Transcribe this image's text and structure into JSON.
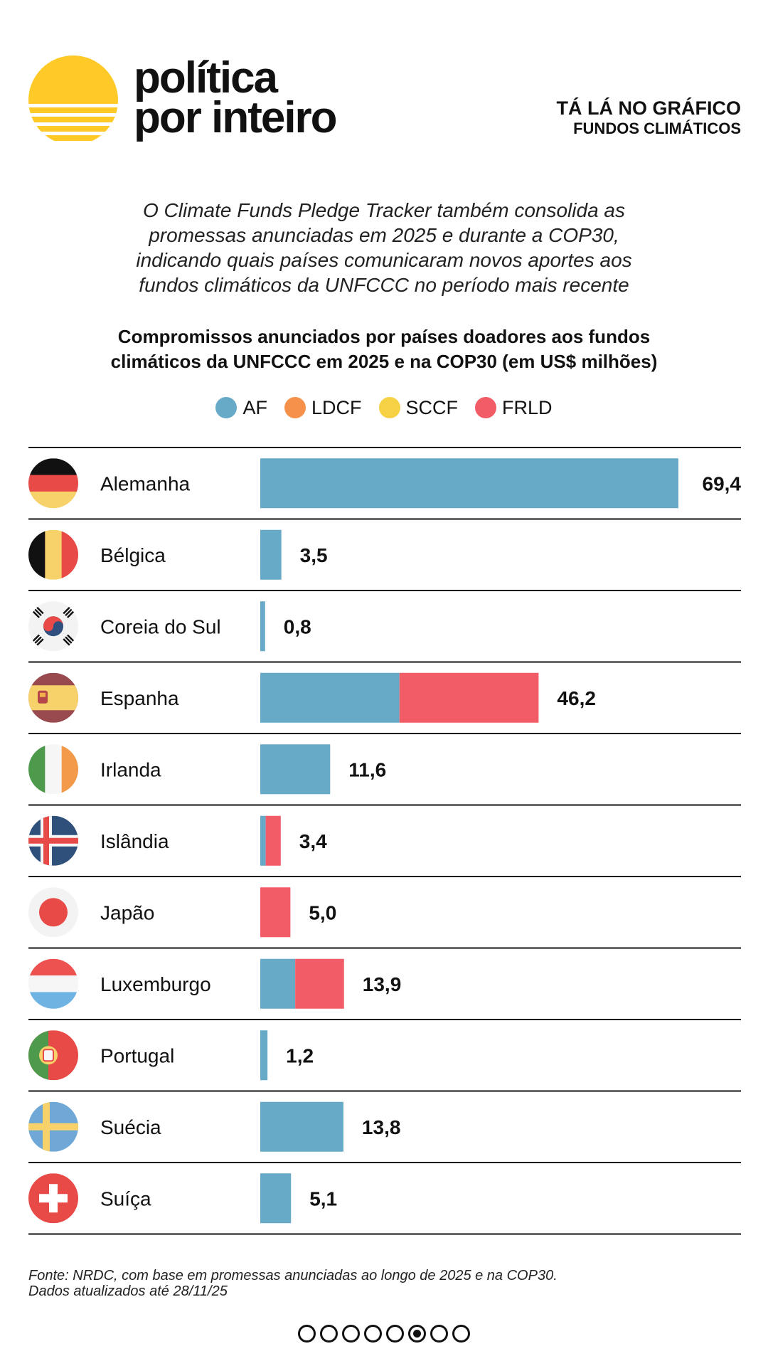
{
  "brand": {
    "line1": "política",
    "line2": "por inteiro"
  },
  "section": {
    "label1": "TÁ LÁ NO GRÁFICO",
    "label2": "FUNDOS CLIMÁTICOS"
  },
  "intro": {
    "lines": [
      "O Climate Funds Pledge Tracker também consolida as",
      "promessas anunciadas em 2025 e durante a COP30,",
      "indicando quais países comunicaram novos aportes aos",
      "fundos climáticos da UNFCCC no período mais recente"
    ]
  },
  "chart_data": {
    "type": "bar",
    "orientation": "horizontal",
    "stacked": true,
    "title_lines": [
      "Compromissos anunciados por países doadores aos fundos",
      "climáticos da UNFCCC em 2025 e na COP30 (em US$ milhões)"
    ],
    "unit": "US$ milhões",
    "legend": [
      {
        "name": "AF",
        "color": "#67AAC8"
      },
      {
        "name": "LDCF",
        "color": "#F5914A"
      },
      {
        "name": "SCCF",
        "color": "#F7D144"
      },
      {
        "name": "FRLD",
        "color": "#F25C66"
      }
    ],
    "xlim": [
      0,
      69.4
    ],
    "categories": [
      "Alemanha",
      "Bélgica",
      "Coreia do Sul",
      "Espanha",
      "Irlanda",
      "Islândia",
      "Japão",
      "Luxemburgo",
      "Portugal",
      "Suécia",
      "Suíça"
    ],
    "series": [
      {
        "name": "AF",
        "values": [
          69.4,
          3.5,
          0.8,
          23.1,
          11.6,
          0.9,
          0,
          5.8,
          1.2,
          13.8,
          5.1
        ]
      },
      {
        "name": "LDCF",
        "values": [
          0,
          0,
          0,
          0,
          0,
          0,
          0,
          0,
          0,
          0,
          0
        ]
      },
      {
        "name": "SCCF",
        "values": [
          0,
          0,
          0,
          0,
          0,
          0,
          0,
          0,
          0,
          0,
          0
        ]
      },
      {
        "name": "FRLD",
        "values": [
          0,
          0,
          0,
          23.1,
          0,
          2.5,
          5.0,
          8.1,
          0,
          0,
          0
        ]
      }
    ],
    "totals": [
      69.4,
      3.5,
      0.8,
      46.2,
      11.6,
      3.4,
      5.0,
      13.9,
      1.2,
      13.8,
      5.1
    ],
    "total_labels": [
      "69,4",
      "3,5",
      "0,8",
      "46,2",
      "11,6",
      "3,4",
      "5,0",
      "13,9",
      "1,2",
      "13,8",
      "5,1"
    ],
    "flags": [
      "germany-flag",
      "belgium-flag",
      "south-korea-flag",
      "spain-flag",
      "ireland-flag",
      "iceland-flag",
      "japan-flag",
      "luxembourg-flag",
      "portugal-flag",
      "sweden-flag",
      "switzerland-flag"
    ]
  },
  "source": {
    "line1": "Fonte: NRDC, com base em promessas anunciadas ao longo de 2025 e na COP30.",
    "line2": "Dados atualizados até 28/11/25"
  },
  "pagination": {
    "total": 8,
    "current": 6
  },
  "colors": {
    "sun": "#FFC928",
    "rule": "#111111"
  }
}
